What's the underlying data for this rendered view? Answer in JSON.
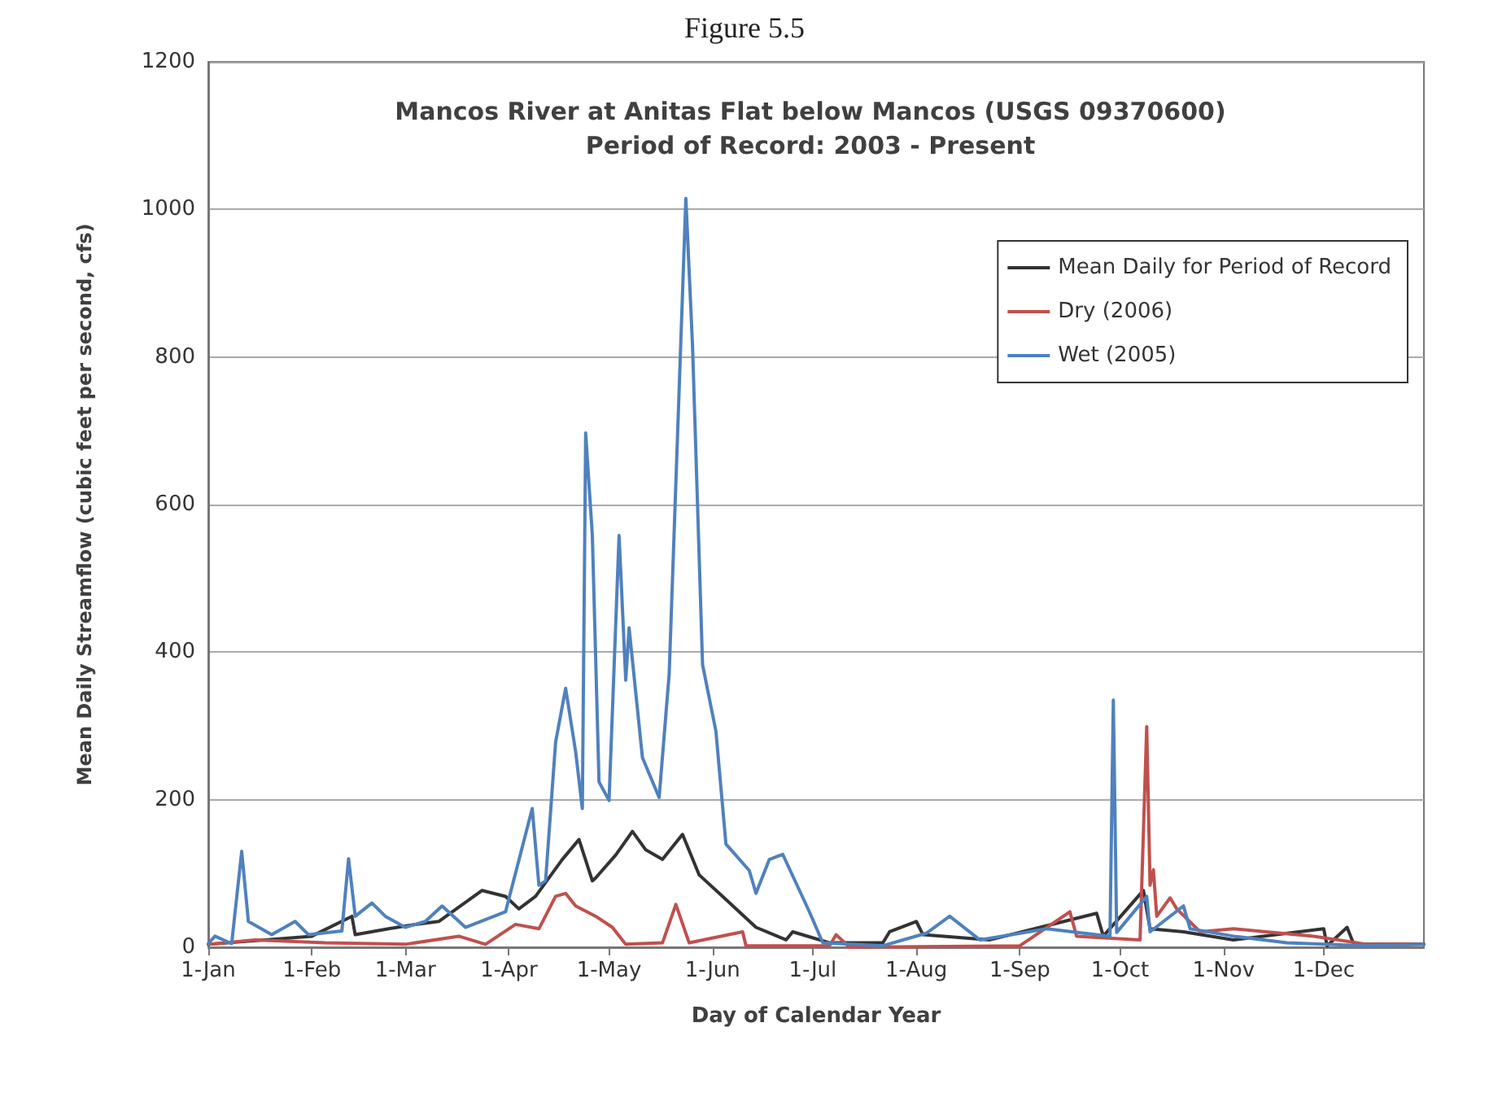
{
  "chart_data": {
    "type": "line",
    "title": "Mancos River at Anitas Flat below Mancos (USGS 09370600)",
    "subtitle": "Period of Record: 2003 - Present",
    "annotations": [
      "Figure 5.5"
    ],
    "xlabel": "Day of Calendar Year",
    "ylabel": "Mean Daily Streamflow (cubic feet per second, cfs)",
    "xlim": [
      "--01-01",
      "--12-31"
    ],
    "xticks": [
      {
        "value": "--01-01",
        "label": "1-Jan"
      },
      {
        "value": "--02-01",
        "label": "1-Feb"
      },
      {
        "value": "--03-01",
        "label": "1-Mar"
      },
      {
        "value": "--04-01",
        "label": "1-Apr"
      },
      {
        "value": "--05-01",
        "label": "1-May"
      },
      {
        "value": "--06-01",
        "label": "1-Jun"
      },
      {
        "value": "--07-01",
        "label": "1-Jul"
      },
      {
        "value": "--08-01",
        "label": "1-Aug"
      },
      {
        "value": "--09-01",
        "label": "1-Sep"
      },
      {
        "value": "--10-01",
        "label": "1-Oct"
      },
      {
        "value": "--11-01",
        "label": "1-Nov"
      },
      {
        "value": "--12-01",
        "label": "1-Dec"
      }
    ],
    "ylim": [
      0,
      1200
    ],
    "yticks": [
      0,
      200,
      400,
      600,
      800,
      1000,
      1200
    ],
    "grid": "y",
    "legend": "top right",
    "marker": "none",
    "line_style": "solid",
    "series": [
      {
        "name": "Mean Daily for Period of Record",
        "color": "#333333",
        "x": [
          "--01-01",
          "--02-01",
          "--02-13",
          "--02-14",
          "--02-24",
          "--03-04",
          "--03-11",
          "--03-24",
          "--03-31",
          "--04-04",
          "--04-09",
          "--04-17",
          "--04-22",
          "--04-26",
          "--04-27",
          "--05-03",
          "--05-08",
          "--05-12",
          "--05-17",
          "--05-23",
          "--05-28",
          "--06-04",
          "--06-14",
          "--06-23",
          "--06-25",
          "--07-06",
          "--07-22",
          "--07-24",
          "--08-01",
          "--08-03",
          "--08-23",
          "--09-24",
          "--09-26",
          "--10-08",
          "--10-10",
          "--10-20",
          "--11-04",
          "--12-01",
          "--12-02",
          "--12-08",
          "--12-10",
          "--12-31"
        ],
        "values": [
          4,
          15,
          42,
          17,
          25,
          31,
          35,
          77,
          69,
          52,
          69,
          119,
          146,
          90,
          94,
          125,
          157,
          132,
          119,
          153,
          98,
          69,
          27,
          10,
          21,
          6,
          6,
          21,
          35,
          17,
          10,
          46,
          15,
          77,
          25,
          21,
          10,
          25,
          2,
          27,
          4,
          4
        ]
      },
      {
        "name": "Dry (2006)",
        "color": "#c0504d",
        "x": [
          "--01-01",
          "--01-15",
          "--02-05",
          "--03-01",
          "--03-17",
          "--03-25",
          "--04-03",
          "--04-10",
          "--04-15",
          "--04-18",
          "--04-21",
          "--04-27",
          "--05-02",
          "--05-06",
          "--05-17",
          "--05-21",
          "--05-25",
          "--06-10",
          "--06-11",
          "--07-06",
          "--07-08",
          "--07-12",
          "--09-01",
          "--09-16",
          "--09-18",
          "--10-07",
          "--10-09",
          "--10-10",
          "--10-11",
          "--10-12",
          "--10-16",
          "--10-18",
          "--10-25",
          "--11-04",
          "--11-28",
          "--12-14",
          "--12-31"
        ],
        "values": [
          4,
          10,
          6,
          4,
          15,
          4,
          31,
          25,
          69,
          73,
          56,
          42,
          27,
          4,
          6,
          58,
          6,
          21,
          2,
          2,
          17,
          0,
          2,
          48,
          15,
          10,
          299,
          84,
          105,
          42,
          67,
          52,
          21,
          25,
          15,
          4,
          4
        ]
      },
      {
        "name": "Wet (2005)",
        "color": "#4f81bd",
        "x": [
          "--01-01",
          "--01-03",
          "--01-08",
          "--01-11",
          "--01-13",
          "--01-20",
          "--01-27",
          "--01-31",
          "--02-10",
          "--02-12",
          "--02-14",
          "--02-19",
          "--02-23",
          "--03-01",
          "--03-07",
          "--03-12",
          "--03-19",
          "--03-31",
          "--04-08",
          "--04-10",
          "--04-12",
          "--04-15",
          "--04-18",
          "--04-21",
          "--04-23",
          "--04-24",
          "--04-26",
          "--04-28",
          "--05-01",
          "--05-04",
          "--05-06",
          "--05-07",
          "--05-11",
          "--05-16",
          "--05-19",
          "--05-24",
          "--05-26",
          "--05-29",
          "--06-02",
          "--06-05",
          "--06-12",
          "--06-14",
          "--06-18",
          "--06-22",
          "--06-30",
          "--07-04",
          "--07-22",
          "--08-04",
          "--08-11",
          "--08-20",
          "--09-09",
          "--09-28",
          "--09-29",
          "--09-30",
          "--10-09",
          "--10-10",
          "--10-20",
          "--10-22",
          "--11-04",
          "--11-20",
          "--12-14",
          "--12-31"
        ],
        "values": [
          5,
          15,
          5,
          130,
          35,
          17,
          35,
          17,
          22,
          120,
          42,
          60,
          42,
          27,
          35,
          56,
          27,
          48,
          188,
          84,
          90,
          278,
          351,
          265,
          188,
          697,
          558,
          224,
          199,
          558,
          362,
          433,
          257,
          203,
          370,
          1015,
          815,
          383,
          293,
          140,
          104,
          73,
          119,
          126,
          48,
          6,
          2,
          19,
          42,
          10,
          25,
          15,
          335,
          20,
          69,
          21,
          56,
          25,
          15,
          6,
          2,
          4
        ]
      }
    ]
  }
}
